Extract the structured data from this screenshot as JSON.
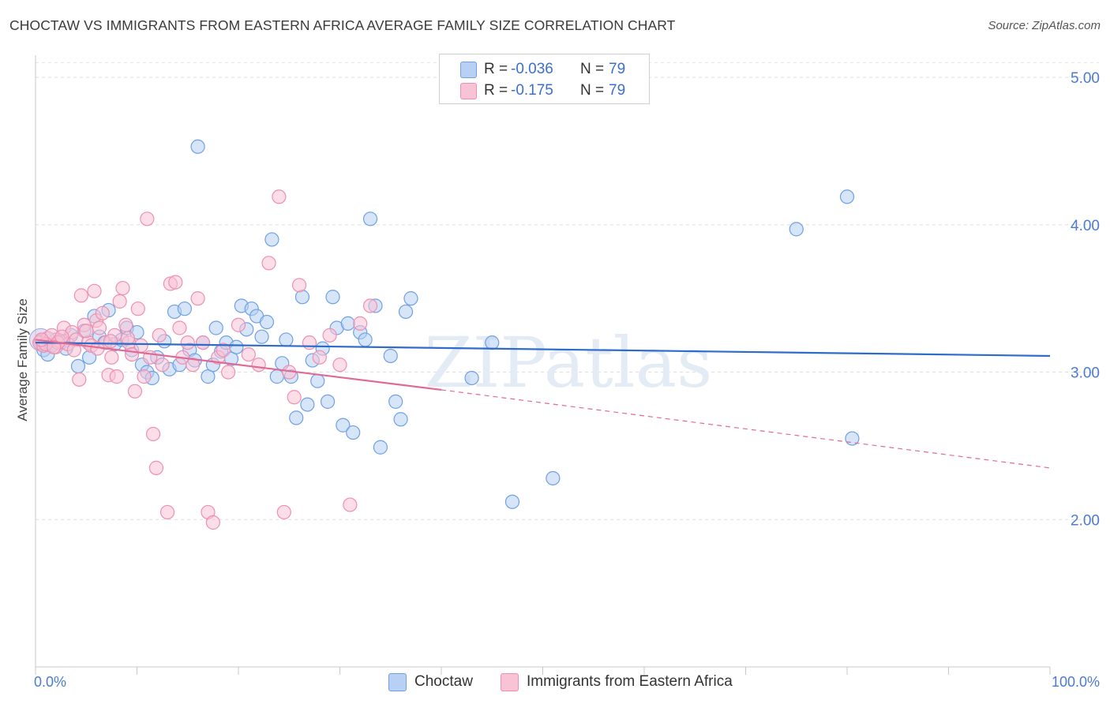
{
  "title": "CHOCTAW VS IMMIGRANTS FROM EASTERN AFRICA AVERAGE FAMILY SIZE CORRELATION CHART",
  "source": "Source: ZipAtlas.com",
  "watermark": "ZIPatlas",
  "legend": {
    "r_label": "R =",
    "n_label": "N =",
    "rows": [
      {
        "r": "-0.036",
        "n": "79"
      },
      {
        "r": "-0.175",
        "n": "79"
      }
    ]
  },
  "chart_data": {
    "type": "scatter",
    "title": "CHOCTAW VS IMMIGRANTS FROM EASTERN AFRICA AVERAGE FAMILY SIZE CORRELATION CHART",
    "xlabel": "",
    "ylabel": "Average Family Size",
    "xlim": [
      0,
      100
    ],
    "ylim": [
      1.0,
      5.15
    ],
    "x_ticks": [
      "0.0%",
      "100.0%"
    ],
    "y_ticks": [
      {
        "value": 2.0,
        "label": "2.00"
      },
      {
        "value": 3.0,
        "label": "3.00"
      },
      {
        "value": 4.0,
        "label": "4.00"
      },
      {
        "value": 5.0,
        "label": "5.00"
      }
    ],
    "grid": true,
    "legend_position": "top-center",
    "series": [
      {
        "name": "Choctaw",
        "color": "#6fa0e6",
        "fill": "#b7d0f3",
        "trend": {
          "x0": 0,
          "y0": 3.2,
          "x1": 100,
          "y1": 3.11,
          "color": "#2d6cc8"
        },
        "points": [
          [
            0.5,
            3.21
          ],
          [
            0.8,
            3.15
          ],
          [
            1.2,
            3.12
          ],
          [
            1.6,
            3.18
          ],
          [
            2.0,
            3.22
          ],
          [
            2.5,
            3.2
          ],
          [
            3.0,
            3.16
          ],
          [
            3.5,
            3.25
          ],
          [
            4.2,
            3.04
          ],
          [
            4.8,
            3.28
          ],
          [
            5.3,
            3.1
          ],
          [
            5.8,
            3.38
          ],
          [
            6.3,
            3.24
          ],
          [
            6.8,
            3.2
          ],
          [
            7.2,
            3.42
          ],
          [
            7.8,
            3.19
          ],
          [
            8.5,
            3.22
          ],
          [
            9.0,
            3.3
          ],
          [
            9.5,
            3.15
          ],
          [
            10.0,
            3.27
          ],
          [
            10.5,
            3.05
          ],
          [
            11.0,
            3.0
          ],
          [
            11.5,
            2.96
          ],
          [
            12.0,
            3.1
          ],
          [
            12.7,
            3.21
          ],
          [
            13.2,
            3.02
          ],
          [
            13.7,
            3.41
          ],
          [
            14.2,
            3.05
          ],
          [
            14.7,
            3.43
          ],
          [
            15.2,
            3.15
          ],
          [
            15.7,
            3.08
          ],
          [
            16.0,
            4.53
          ],
          [
            16.5,
            3.2
          ],
          [
            17.0,
            2.97
          ],
          [
            17.5,
            3.05
          ],
          [
            17.8,
            3.3
          ],
          [
            18.3,
            3.14
          ],
          [
            18.8,
            3.2
          ],
          [
            19.3,
            3.09
          ],
          [
            19.8,
            3.17
          ],
          [
            20.3,
            3.45
          ],
          [
            20.8,
            3.29
          ],
          [
            21.3,
            3.43
          ],
          [
            21.8,
            3.38
          ],
          [
            22.3,
            3.24
          ],
          [
            22.8,
            3.34
          ],
          [
            23.3,
            3.9
          ],
          [
            23.8,
            2.97
          ],
          [
            24.3,
            3.06
          ],
          [
            24.7,
            3.22
          ],
          [
            25.2,
            2.97
          ],
          [
            25.7,
            2.69
          ],
          [
            26.3,
            3.51
          ],
          [
            26.8,
            2.78
          ],
          [
            27.3,
            3.08
          ],
          [
            27.8,
            2.94
          ],
          [
            28.3,
            3.16
          ],
          [
            28.8,
            2.8
          ],
          [
            29.3,
            3.51
          ],
          [
            29.7,
            3.3
          ],
          [
            30.3,
            2.64
          ],
          [
            30.8,
            3.33
          ],
          [
            31.3,
            2.59
          ],
          [
            32.0,
            3.27
          ],
          [
            32.5,
            3.22
          ],
          [
            33.0,
            4.04
          ],
          [
            33.5,
            3.45
          ],
          [
            34.0,
            2.49
          ],
          [
            35.0,
            3.11
          ],
          [
            35.5,
            2.8
          ],
          [
            36.0,
            2.68
          ],
          [
            36.5,
            3.41
          ],
          [
            37.0,
            3.5
          ],
          [
            43.0,
            2.96
          ],
          [
            45.0,
            3.2
          ],
          [
            47.0,
            2.12
          ],
          [
            51.0,
            2.28
          ],
          [
            75.0,
            3.97
          ],
          [
            80.0,
            4.19
          ],
          [
            80.5,
            2.55
          ]
        ]
      },
      {
        "name": "Immigrants from Eastern Africa",
        "color": "#ef8fb0",
        "fill": "#f7c3d5",
        "trend": {
          "x0": 0,
          "y0": 3.22,
          "x1": 40,
          "y1": 2.88,
          "dash_x1": 100,
          "dash_y1": 2.35,
          "color": "#e06a94"
        },
        "points": [
          [
            0.4,
            3.2
          ],
          [
            0.8,
            3.18
          ],
          [
            1.2,
            3.23
          ],
          [
            1.6,
            3.25
          ],
          [
            2.0,
            3.17
          ],
          [
            2.4,
            3.21
          ],
          [
            2.8,
            3.3
          ],
          [
            3.2,
            3.19
          ],
          [
            3.6,
            3.27
          ],
          [
            4.0,
            3.22
          ],
          [
            4.3,
            2.95
          ],
          [
            4.5,
            3.52
          ],
          [
            4.8,
            3.32
          ],
          [
            5.2,
            3.2
          ],
          [
            5.5,
            3.18
          ],
          [
            5.8,
            3.55
          ],
          [
            6.0,
            3.35
          ],
          [
            6.3,
            3.3
          ],
          [
            6.6,
            3.4
          ],
          [
            6.9,
            3.2
          ],
          [
            7.2,
            2.98
          ],
          [
            7.5,
            3.1
          ],
          [
            7.8,
            3.25
          ],
          [
            8.0,
            2.97
          ],
          [
            8.3,
            3.48
          ],
          [
            8.6,
            3.57
          ],
          [
            8.9,
            3.32
          ],
          [
            9.2,
            3.2
          ],
          [
            9.5,
            3.12
          ],
          [
            9.8,
            2.87
          ],
          [
            10.1,
            3.43
          ],
          [
            10.4,
            3.18
          ],
          [
            10.7,
            2.97
          ],
          [
            11.0,
            4.04
          ],
          [
            11.3,
            3.1
          ],
          [
            11.6,
            2.58
          ],
          [
            11.9,
            2.35
          ],
          [
            12.2,
            3.25
          ],
          [
            12.5,
            3.05
          ],
          [
            13.0,
            2.05
          ],
          [
            13.3,
            3.6
          ],
          [
            13.8,
            3.61
          ],
          [
            14.2,
            3.3
          ],
          [
            14.5,
            3.1
          ],
          [
            15.0,
            3.2
          ],
          [
            15.5,
            3.05
          ],
          [
            16.0,
            3.5
          ],
          [
            16.5,
            3.2
          ],
          [
            17.0,
            2.05
          ],
          [
            17.5,
            1.98
          ],
          [
            18.0,
            3.1
          ],
          [
            18.5,
            3.15
          ],
          [
            19.0,
            3.0
          ],
          [
            20.0,
            3.32
          ],
          [
            21.0,
            3.12
          ],
          [
            22.0,
            3.05
          ],
          [
            23.0,
            3.74
          ],
          [
            24.0,
            4.19
          ],
          [
            24.5,
            2.05
          ],
          [
            25.0,
            3.0
          ],
          [
            25.5,
            2.83
          ],
          [
            26.0,
            3.59
          ],
          [
            27.0,
            3.2
          ],
          [
            28.0,
            3.1
          ],
          [
            29.0,
            3.25
          ],
          [
            30.0,
            3.05
          ],
          [
            31.0,
            2.1
          ],
          [
            32.0,
            3.33
          ],
          [
            33.0,
            3.45
          ],
          [
            2.2,
            3.2
          ],
          [
            3.8,
            3.15
          ],
          [
            1.0,
            3.19
          ],
          [
            6.1,
            3.16
          ],
          [
            7.4,
            3.21
          ],
          [
            9.1,
            3.23
          ],
          [
            0.6,
            3.22
          ],
          [
            1.8,
            3.17
          ],
          [
            2.6,
            3.24
          ],
          [
            5.0,
            3.28
          ]
        ]
      }
    ]
  },
  "bottom_legend": [
    {
      "label": "Choctaw"
    },
    {
      "label": "Immigrants from Eastern Africa"
    }
  ]
}
